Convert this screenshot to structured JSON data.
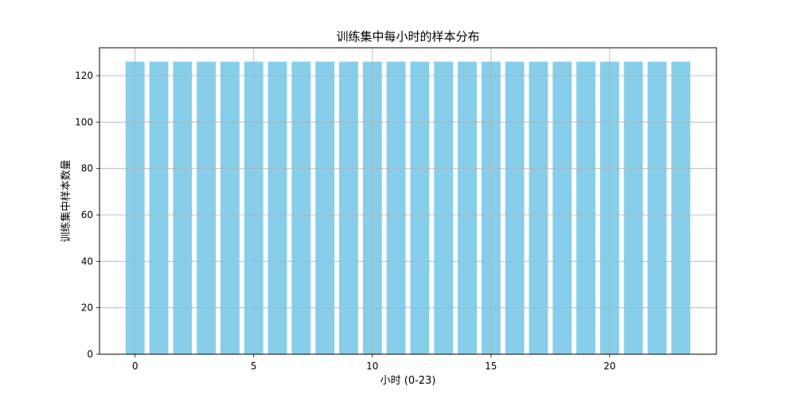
{
  "chart_data": {
    "type": "bar",
    "title": "训练集中每小时的样本分布",
    "xlabel": "小时 (0-23)",
    "ylabel": "训练集中样本数量",
    "x": [
      0,
      1,
      2,
      3,
      4,
      5,
      6,
      7,
      8,
      9,
      10,
      11,
      12,
      13,
      14,
      15,
      16,
      17,
      18,
      19,
      20,
      21,
      22,
      23
    ],
    "values": [
      126,
      126,
      126,
      126,
      126,
      126,
      126,
      126,
      126,
      126,
      126,
      126,
      126,
      126,
      126,
      126,
      126,
      126,
      126,
      126,
      126,
      126,
      126,
      126
    ],
    "xlim": [
      -1.5,
      24.5
    ],
    "ylim": [
      0,
      132
    ],
    "xticks": [
      0,
      5,
      10,
      15,
      20
    ],
    "yticks": [
      0,
      20,
      40,
      60,
      80,
      100,
      120
    ],
    "bar_color": "#87CEEB",
    "grid": true,
    "grid_color": "#b0b0b0"
  }
}
